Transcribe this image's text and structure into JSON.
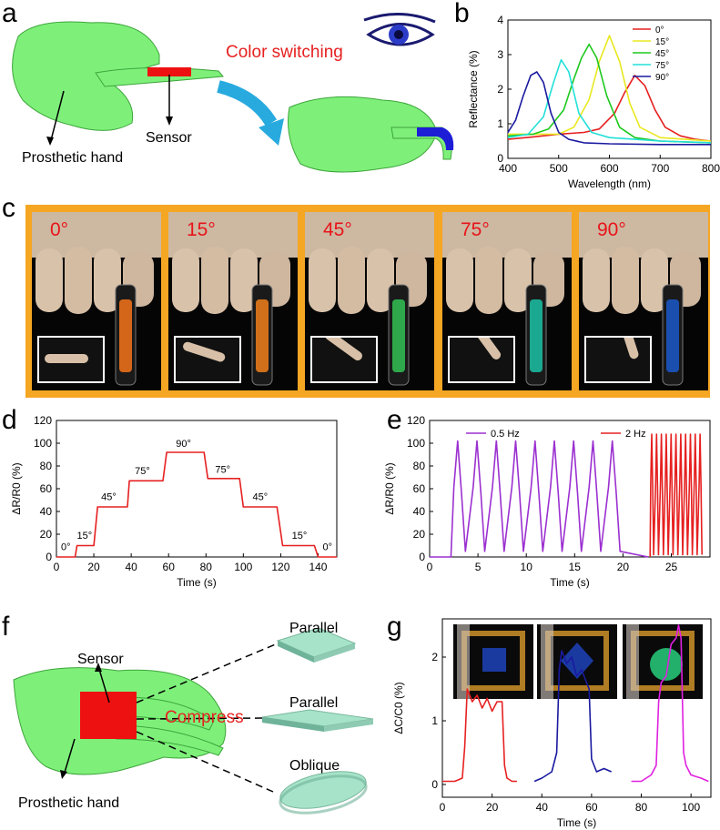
{
  "panels": {
    "a": "a",
    "b": "b",
    "c": "c",
    "d": "d",
    "e": "e",
    "f": "f",
    "g": "g"
  },
  "colors": {
    "red": "#e62020",
    "yellow": "#e8e820",
    "green": "#1ec81e",
    "cyan": "#22e0d8",
    "blue": "#1a1aa0",
    "purple": "#9b30d0",
    "magenta": "#e020e0",
    "frame": "#f5a623",
    "hand": "#7ef07a"
  },
  "icons": [
    "prosthetic-hand-illustration",
    "eye-icon",
    "curved-arrow-icon",
    "tilted-plate-icon"
  ],
  "panel_a": {
    "title": "Color switching",
    "sensor": "Sensor",
    "hand": "Prosthetic hand"
  },
  "panel_c": {
    "angles": [
      "0°",
      "15°",
      "45°",
      "75°",
      "90°"
    ],
    "sensor_colors": [
      "#d4661a",
      "#d0701a",
      "#2ea84a",
      "#1aa890",
      "#1a4fb0"
    ]
  },
  "panel_f": {
    "sensor": "Sensor",
    "hand": "Prosthetic hand",
    "compress": "Compress",
    "plates": [
      "Parallel",
      "Parallel",
      "Oblique"
    ]
  },
  "chart_data": [
    {
      "panel": "b",
      "type": "line",
      "xlabel": "Wavelength (nm)",
      "ylabel": "Reflectance (%)",
      "xlim": [
        400,
        800
      ],
      "ylim": [
        0,
        4
      ],
      "xticks": [
        400,
        500,
        600,
        700,
        800
      ],
      "yticks": [
        0,
        1,
        2,
        3,
        4
      ],
      "legend_position": "top-right",
      "series": [
        {
          "name": "0°",
          "color": "#e62020",
          "x": [
            400,
            450,
            500,
            550,
            580,
            610,
            630,
            650,
            670,
            690,
            710,
            740,
            770,
            800
          ],
          "y": [
            0.55,
            0.62,
            0.7,
            0.75,
            0.85,
            1.3,
            1.9,
            2.4,
            2.1,
            1.4,
            0.9,
            0.65,
            0.55,
            0.5
          ]
        },
        {
          "name": "15°",
          "color": "#e8e820",
          "x": [
            400,
            450,
            500,
            530,
            560,
            580,
            600,
            620,
            640,
            660,
            700,
            750,
            800
          ],
          "y": [
            0.7,
            0.7,
            0.7,
            0.9,
            1.7,
            2.8,
            3.55,
            2.8,
            1.6,
            0.9,
            0.6,
            0.55,
            0.5
          ]
        },
        {
          "name": "45°",
          "color": "#1ec81e",
          "x": [
            400,
            450,
            480,
            510,
            530,
            545,
            560,
            575,
            595,
            620,
            650,
            700,
            800
          ],
          "y": [
            0.65,
            0.7,
            0.85,
            1.4,
            2.3,
            2.9,
            3.3,
            2.9,
            1.8,
            0.9,
            0.6,
            0.5,
            0.45
          ]
        },
        {
          "name": "75°",
          "color": "#22e0d8",
          "x": [
            400,
            440,
            470,
            490,
            505,
            520,
            540,
            565,
            600,
            650,
            700,
            800
          ],
          "y": [
            0.6,
            0.7,
            1.2,
            2.2,
            2.85,
            2.5,
            1.3,
            0.75,
            0.6,
            0.55,
            0.5,
            0.45
          ]
        },
        {
          "name": "90°",
          "color": "#1a1aa0",
          "x": [
            400,
            415,
            430,
            445,
            457,
            470,
            485,
            500,
            520,
            550,
            600,
            700,
            800
          ],
          "y": [
            0.75,
            1.1,
            1.8,
            2.4,
            2.5,
            2.2,
            1.3,
            0.75,
            0.55,
            0.45,
            0.42,
            0.4,
            0.4
          ]
        }
      ]
    },
    {
      "panel": "d",
      "type": "line",
      "xlabel": "Time (s)",
      "ylabel": "ΔR/R0 (%)",
      "xlim": [
        0,
        150
      ],
      "ylim": [
        0,
        120
      ],
      "xticks": [
        0,
        20,
        40,
        60,
        80,
        100,
        120,
        140
      ],
      "yticks": [
        0,
        20,
        40,
        60,
        80,
        100,
        120
      ],
      "color": "#e62020",
      "x": [
        0,
        10,
        11,
        20,
        22,
        38,
        39,
        57,
        59,
        79,
        81,
        98,
        100,
        118,
        121,
        138,
        140,
        150
      ],
      "y": [
        0,
        0,
        10,
        10,
        44,
        44,
        67,
        67,
        92,
        92,
        69,
        69,
        44,
        44,
        10,
        10,
        0,
        0
      ],
      "annotations": [
        {
          "text": "0°",
          "x": 5,
          "y": 6
        },
        {
          "text": "15°",
          "x": 15,
          "y": 16
        },
        {
          "text": "45°",
          "x": 28,
          "y": 50
        },
        {
          "text": "75°",
          "x": 46,
          "y": 73
        },
        {
          "text": "90°",
          "x": 68,
          "y": 97
        },
        {
          "text": "75°",
          "x": 89,
          "y": 74
        },
        {
          "text": "45°",
          "x": 109,
          "y": 50
        },
        {
          "text": "15°",
          "x": 130,
          "y": 16
        },
        {
          "text": "0°",
          "x": 145,
          "y": 6
        }
      ]
    },
    {
      "panel": "e",
      "type": "line",
      "xlabel": "Time (s)",
      "ylabel": "ΔR/R0 (%)",
      "xlim": [
        0,
        29
      ],
      "ylim": [
        0,
        120
      ],
      "xticks": [
        0,
        5,
        10,
        15,
        20,
        25
      ],
      "yticks": [
        0,
        20,
        40,
        60,
        80,
        100,
        120
      ],
      "legend_position": "top",
      "series": [
        {
          "name": "0.5 Hz",
          "color": "#9b30d0",
          "start": 2.2,
          "end": 22.0,
          "period": 2.0,
          "peak": 102,
          "trough": 5
        },
        {
          "name": "2 Hz",
          "color": "#e62020",
          "start": 22.8,
          "end": 28.6,
          "period": 0.5,
          "peak": 108,
          "trough": 2
        }
      ]
    },
    {
      "panel": "g",
      "type": "line",
      "xlabel": "Time (s)",
      "ylabel": "ΔC/C0 (%)",
      "xlim": [
        0,
        108
      ],
      "ylim": [
        -0.2,
        2.6
      ],
      "xticks": [
        0,
        20,
        40,
        60,
        80,
        100
      ],
      "yticks": [
        0,
        1,
        2
      ],
      "series": [
        {
          "color": "#e62020",
          "x": [
            0,
            5,
            8,
            9,
            10,
            12,
            14,
            16,
            18,
            20,
            22,
            24,
            25,
            26,
            28,
            30
          ],
          "y": [
            0.05,
            0.05,
            0.1,
            0.6,
            1.5,
            1.3,
            1.4,
            1.2,
            1.35,
            1.15,
            1.3,
            1.3,
            0.3,
            0.1,
            0.05,
            0.05
          ]
        },
        {
          "color": "#1a1aa0",
          "x": [
            37,
            40,
            44,
            46,
            47,
            48,
            50,
            52,
            54,
            56,
            58,
            59,
            60,
            62,
            65,
            68
          ],
          "y": [
            0.05,
            0.1,
            0.2,
            0.5,
            1.8,
            2.1,
            1.9,
            2.0,
            1.7,
            1.8,
            1.6,
            1.5,
            0.4,
            0.2,
            0.25,
            0.2
          ]
        },
        {
          "color": "#e020e0",
          "x": [
            76,
            80,
            84,
            86,
            87,
            88,
            90,
            92,
            94,
            95,
            96,
            97,
            98,
            100,
            104,
            107
          ],
          "y": [
            0.05,
            0.05,
            0.15,
            0.3,
            1.3,
            1.6,
            1.7,
            2.2,
            2.3,
            2.5,
            2.3,
            0.5,
            0.3,
            0.15,
            0.1,
            0.05
          ]
        }
      ]
    }
  ]
}
